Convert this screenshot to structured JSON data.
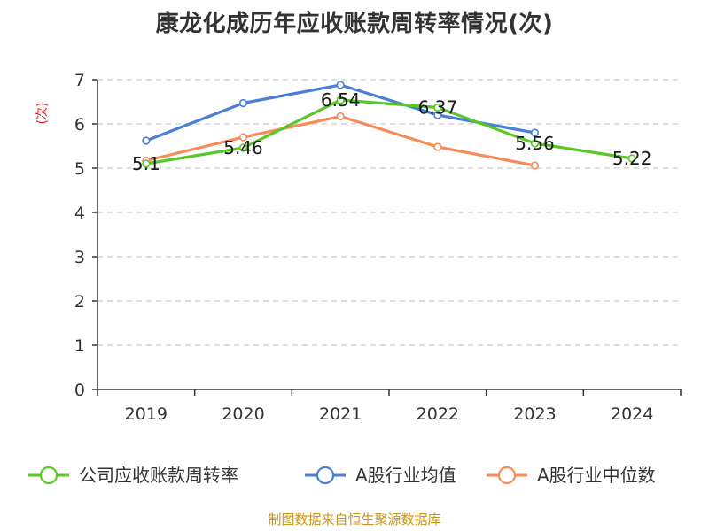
{
  "title": "康龙化成历年应收账款周转率情况(次)",
  "source": "制图数据来自恒生聚源数据库",
  "colors": {
    "unit": "#e02020",
    "source": "#c8961e",
    "grid": "#cccccc",
    "axis": "#333333"
  },
  "chart_data": {
    "type": "line",
    "title": "康龙化成历年应收账款周转率情况(次)",
    "xlabel": "",
    "ylabel": "(次)",
    "categories": [
      "2019",
      "2020",
      "2021",
      "2022",
      "2023",
      "2024"
    ],
    "ylim": [
      0,
      7
    ],
    "yticks": [
      0,
      1,
      2,
      3,
      4,
      5,
      6,
      7
    ],
    "grid": true,
    "legend_position": "bottom",
    "series": [
      {
        "name": "公司应收账款周转率",
        "color": "#5ac828",
        "values": [
          5.1,
          5.46,
          6.54,
          6.37,
          5.56,
          5.22
        ],
        "labels": [
          "5.1",
          "5.46",
          "6.54",
          "6.37",
          "5.56",
          "5.22"
        ]
      },
      {
        "name": "A股行业均值",
        "color": "#4a7fd8",
        "values": [
          5.62,
          6.47,
          6.88,
          6.2,
          5.8,
          null
        ],
        "labels": null
      },
      {
        "name": "A股行业中位数",
        "color": "#f58c5a",
        "values": [
          5.17,
          5.7,
          6.17,
          5.48,
          5.06,
          null
        ],
        "labels": null
      }
    ]
  }
}
